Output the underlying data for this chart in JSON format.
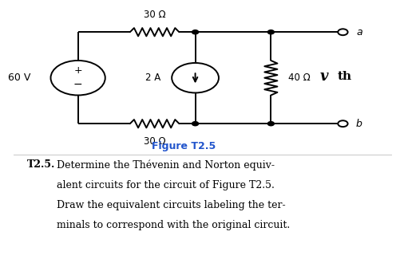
{
  "bg_color_circuit": "#ffffff",
  "bg_color_text": "#e8e8e8",
  "title": "Figure T2.5",
  "title_color": "#2255cc",
  "title_fontsize": 9,
  "label_30top": "30 Ω",
  "label_30bot": "30 Ω",
  "label_2A": "2 A",
  "label_40": "40 Ω",
  "label_60V": "60 V",
  "label_a": "a",
  "label_b": "b",
  "lw": 1.4,
  "circuit_split": 0.595,
  "xlim": [
    0,
    10
  ],
  "ylim": [
    0,
    6
  ],
  "ytop": 5.0,
  "ybot": 1.2,
  "x_vs": 1.7,
  "vs_r": 0.72,
  "x_n1": 2.65,
  "x_n2": 4.8,
  "x_n3": 6.8,
  "x_term": 8.7,
  "cs_r": 0.62,
  "res_hsize": 0.65,
  "res_vsize": 0.72,
  "res_amp": 0.17,
  "dot_r": 0.085,
  "open_r": 0.13
}
